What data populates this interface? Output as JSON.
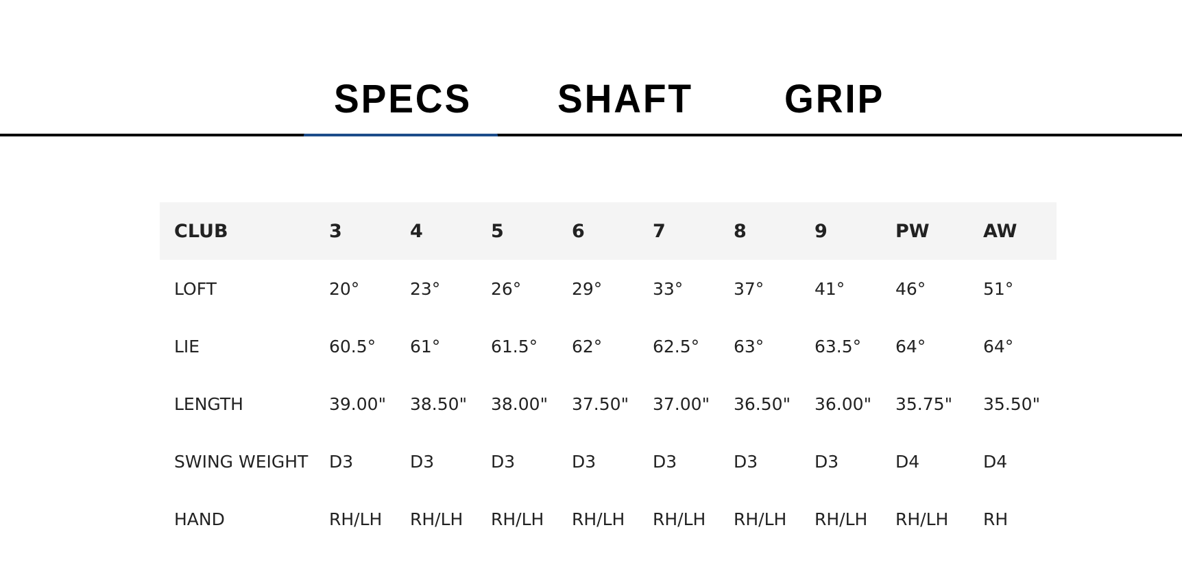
{
  "tabs": [
    {
      "label": "SPECS",
      "active": true
    },
    {
      "label": "SHAFT",
      "active": false
    },
    {
      "label": "GRIP",
      "active": false
    }
  ],
  "colors": {
    "active_tab_underline": "#1c4c8a",
    "header_bg": "#f4f4f4",
    "text": "#222222"
  },
  "table": {
    "headers": [
      "CLUB",
      "3",
      "4",
      "5",
      "6",
      "7",
      "8",
      "9",
      "PW",
      "AW"
    ],
    "rows": [
      [
        "LOFT",
        "20°",
        "23°",
        "26°",
        "29°",
        "33°",
        "37°",
        "41°",
        "46°",
        "51°"
      ],
      [
        "LIE",
        "60.5°",
        "61°",
        "61.5°",
        "62°",
        "62.5°",
        "63°",
        "63.5°",
        "64°",
        "64°"
      ],
      [
        "LENGTH",
        "39.00\"",
        "38.50\"",
        "38.00\"",
        "37.50\"",
        "37.00\"",
        "36.50\"",
        "36.00\"",
        "35.75\"",
        "35.50\""
      ],
      [
        "SWING WEIGHT",
        "D3",
        "D3",
        "D3",
        "D3",
        "D3",
        "D3",
        "D3",
        "D4",
        "D4"
      ],
      [
        "HAND",
        "RH/LH",
        "RH/LH",
        "RH/LH",
        "RH/LH",
        "RH/LH",
        "RH/LH",
        "RH/LH",
        "RH/LH",
        "RH"
      ]
    ]
  }
}
